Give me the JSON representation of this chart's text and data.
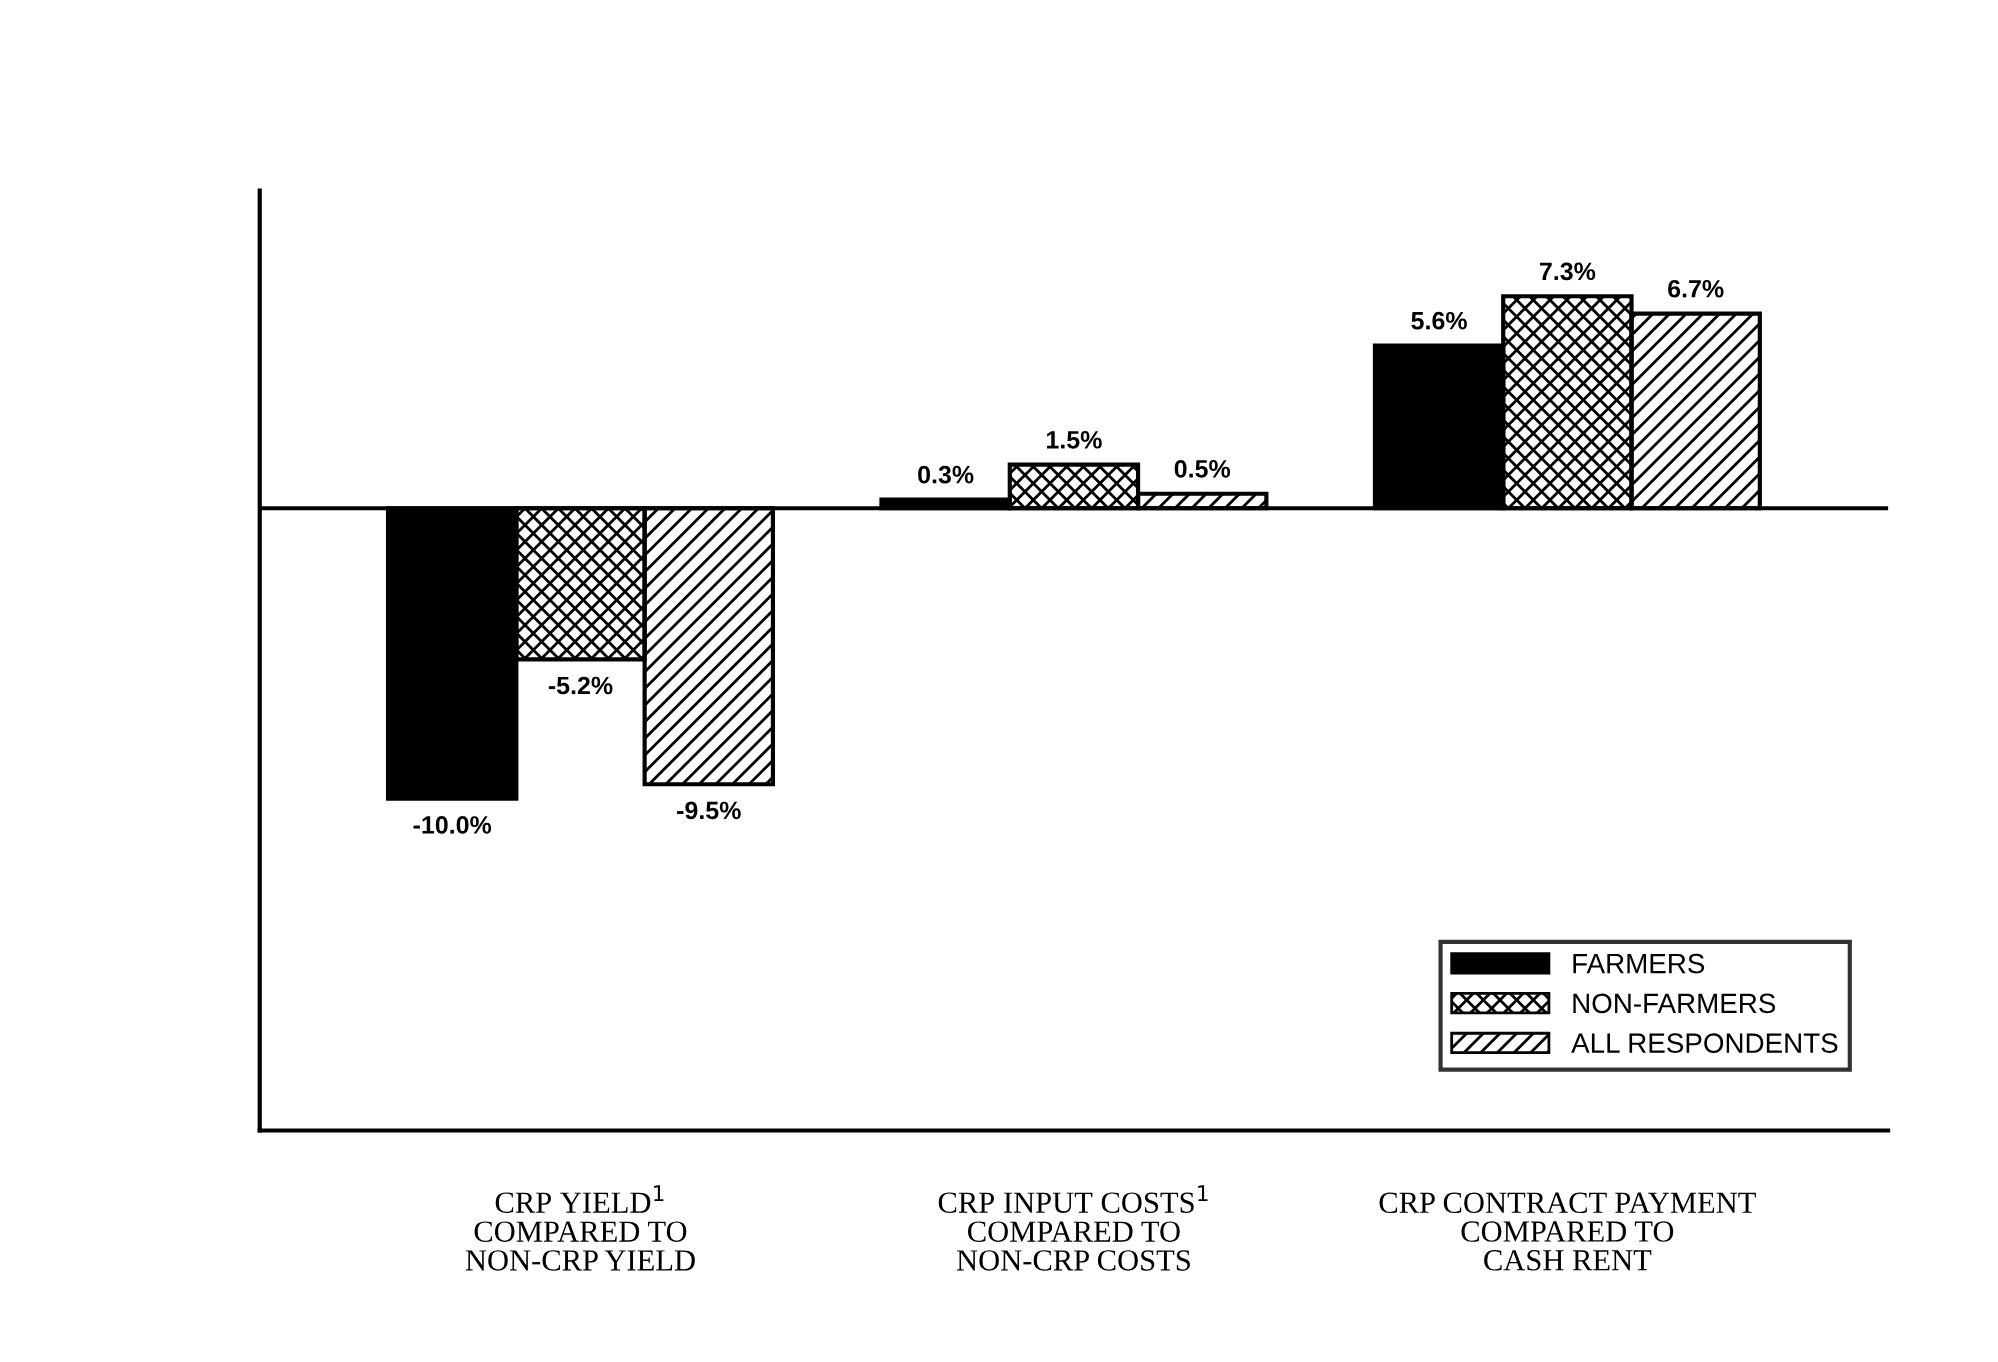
{
  "chart_data": {
    "type": "bar",
    "categories": [
      "CRP YIELD$^{1}$\nCOMPARED TO\nNON-CRP YIELD",
      "CRP INPUT COSTS$^{1}$\nCOMPARED TO\nNON-CRP COSTS",
      "CRP CONTRACT PAYMENT\nCOMPARED TO\nCASH RENT"
    ],
    "series": [
      {
        "name": "FARMERS",
        "color": "#000000",
        "values": [
          -10.0,
          0.3,
          5.6
        ],
        "value_labels": [
          "-10.0%",
          "0.3%",
          "5.6%"
        ]
      },
      {
        "name": "NON-FARMERS",
        "color": "#000000",
        "values": [
          -5.2,
          1.5,
          7.3
        ],
        "value_labels": [
          "-5.2%",
          "1.5%",
          "7.3%"
        ]
      },
      {
        "name": "ALL RESPONDENTS",
        "color": "#000000",
        "values": [
          -9.5,
          0.5,
          6.7
        ],
        "value_labels": [
          "-9.5%",
          "0.5%",
          "6.7%"
        ]
      }
    ],
    "legend": "bottom right",
    "grid": false
  }
}
